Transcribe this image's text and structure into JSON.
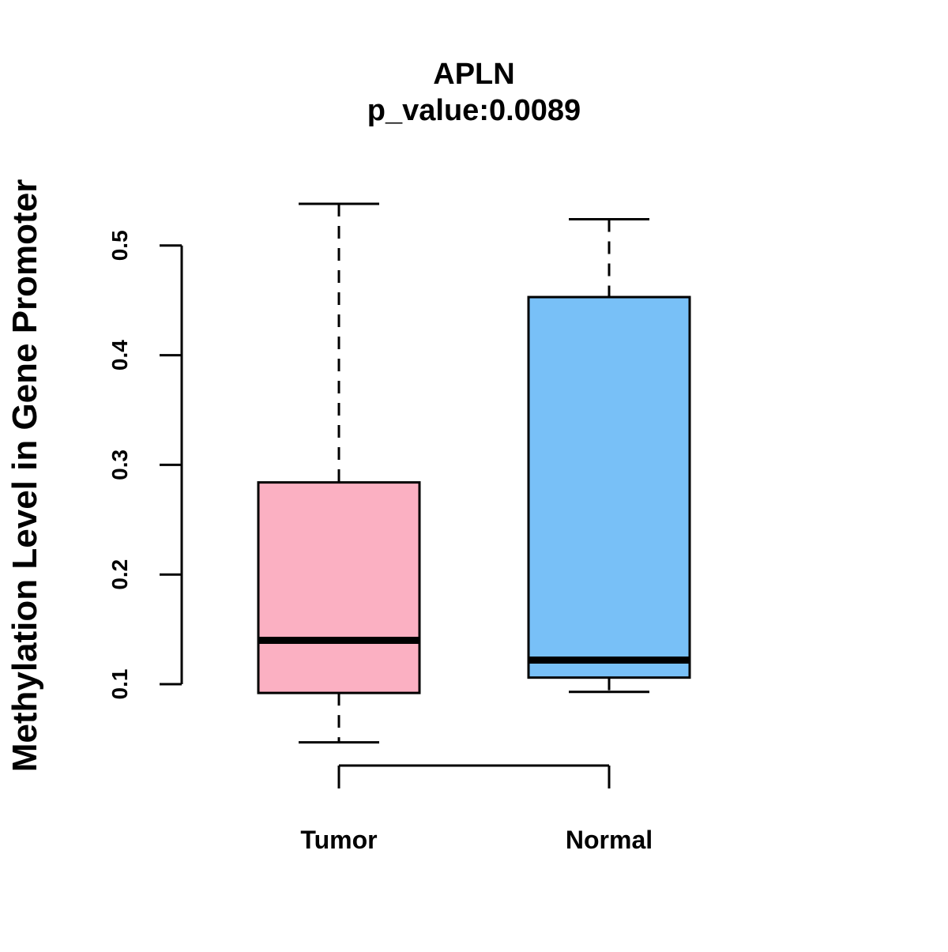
{
  "chart_data": {
    "type": "box",
    "title": "APLN",
    "subtitle": "p_value:0.0089",
    "ylabel": "Methylation Level in Gene Promoter",
    "xlabel": "",
    "yticks": [
      "0.1",
      "0.2",
      "0.3",
      "0.4",
      "0.5"
    ],
    "ytick_values": [
      0.1,
      0.2,
      0.3,
      0.4,
      0.5
    ],
    "categories": [
      "Tumor",
      "Normal"
    ],
    "boxes": [
      {
        "category": "Tumor",
        "whisker_low": 0.047,
        "q1": 0.092,
        "median": 0.14,
        "q3": 0.284,
        "whisker_high": 0.538,
        "color": "#FBB0C2"
      },
      {
        "category": "Normal",
        "whisker_low": 0.093,
        "q1": 0.106,
        "median": 0.122,
        "q3": 0.453,
        "whisker_high": 0.524,
        "color": "#78C0F7"
      }
    ],
    "grid": false,
    "legend": "none"
  }
}
